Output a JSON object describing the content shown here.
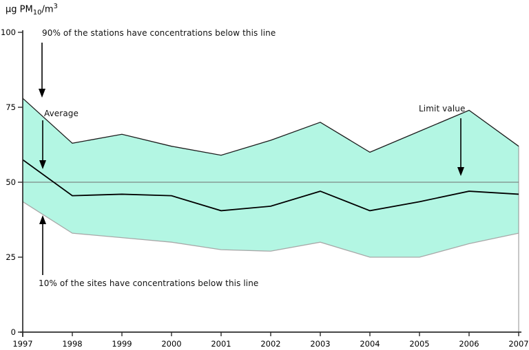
{
  "title": {
    "unit": "µg PM",
    "sub": "10",
    "mid": "/m",
    "sup": "3"
  },
  "annotations": {
    "p90": "90% of the stations have concentrations below this line",
    "average": "Average",
    "p10": "10% of the sites have concentrations below this line",
    "limit": "Limit value"
  },
  "chart_data": {
    "type": "area",
    "title": "µg PM10/m3",
    "x": [
      1997,
      1998,
      1999,
      2000,
      2001,
      2002,
      2003,
      2004,
      2005,
      2006,
      2007
    ],
    "series": [
      {
        "name": "90% of the stations have concentrations below this line",
        "role": "band_top",
        "values": [
          78,
          63,
          66,
          62,
          59,
          64,
          70,
          60,
          67,
          74,
          62
        ]
      },
      {
        "name": "Average",
        "role": "average",
        "values": [
          57.5,
          45.5,
          46,
          45.5,
          40.5,
          42,
          47,
          40.5,
          43.5,
          47,
          46
        ]
      },
      {
        "name": "10% of the sites have concentrations below this line",
        "role": "band_bottom",
        "values": [
          43.5,
          33,
          31.5,
          30,
          27.5,
          27,
          30,
          25,
          25,
          29.5,
          33
        ]
      }
    ],
    "limit_value": 50,
    "ylim": [
      0,
      100
    ],
    "yticks": [
      0,
      25,
      50,
      75,
      100
    ],
    "ylabel": "µg PM10/m3",
    "xlabel": "",
    "grid": false,
    "legend_position": "none"
  },
  "colors": {
    "band_fill": "#b3f6e3",
    "top_line": "#1c1c1c",
    "average_line": "#000000",
    "bottom_line": "#a8a8a8",
    "limit_line": "#6f6f6f",
    "right_border": "#8f8f8f",
    "axis": "#2b2b2b",
    "text": "#000000"
  }
}
